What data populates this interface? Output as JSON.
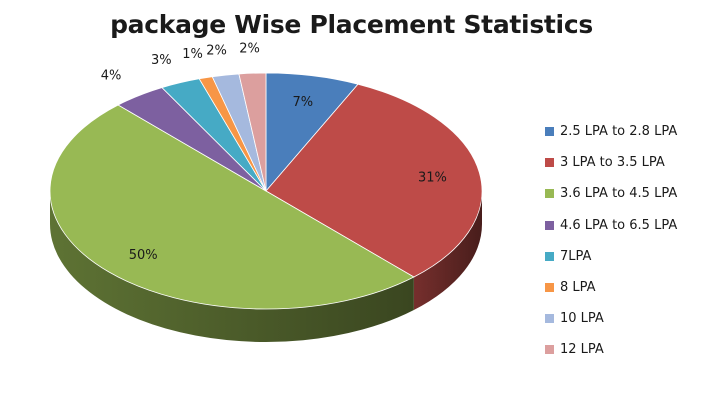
{
  "chart_data": {
    "type": "pie",
    "title": "package Wise Placement Statistics",
    "legend_position": "right",
    "categories": [
      "2.5 LPA to 2.8 LPA",
      "3 LPA to 3.5 LPA",
      "3.6 LPA to 4.5 LPA",
      "4.6 LPA to 6.5 LPA",
      "7LPA",
      "8 LPA",
      "10 LPA",
      "12 LPA"
    ],
    "values": [
      7,
      31,
      50,
      4,
      3,
      1,
      2,
      2
    ],
    "data_labels": [
      "7%",
      "31%",
      "50%",
      "4%",
      "3%",
      "1%",
      "2%",
      "2%"
    ],
    "colors": [
      "#4a7ebb",
      "#be4b48",
      "#98b954",
      "#7d60a0",
      "#46aac5",
      "#f79646",
      "#a5b9de",
      "#dc9f9e"
    ]
  }
}
